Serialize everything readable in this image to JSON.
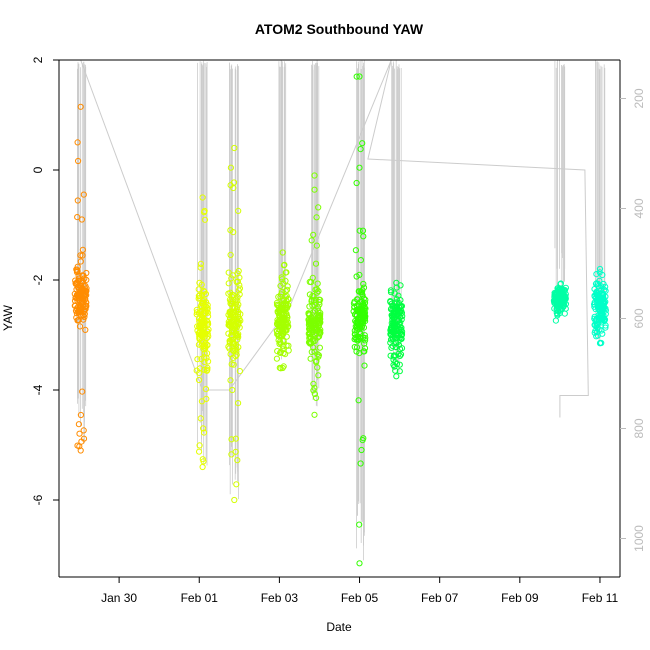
{
  "chart_data": {
    "type": "scatter",
    "title": "ATOM2 Southbound YAW",
    "xlabel": "Date",
    "ylabel": "YAW",
    "x_ticks": [
      "Jan 30",
      "Feb 01",
      "Feb 03",
      "Feb 05",
      "Feb 07",
      "Feb 09",
      "Feb 11"
    ],
    "y_ticks": [
      2,
      0,
      -2,
      -4,
      -6
    ],
    "y2_ticks": [
      200,
      400,
      600,
      800,
      1000
    ],
    "xlim": [
      "2015-01-28T12:00",
      "2015-02-11T12:00"
    ],
    "ylim": [
      -7.4,
      2.0
    ],
    "y2lim": [
      1070,
      130
    ],
    "grid": false,
    "legend": "none",
    "clusters": [
      {
        "x": "2015-01-29T01:00",
        "center": -2.3,
        "spread": 0.25,
        "low": -5.1,
        "high": 1.15,
        "color": "#ff8c00"
      },
      {
        "x": "2015-02-01T02:00",
        "center": -2.9,
        "spread": 0.35,
        "low": -5.4,
        "high": -0.5,
        "color": "#e5ff00"
      },
      {
        "x": "2015-02-01T21:00",
        "center": -2.8,
        "spread": 0.4,
        "low": -6.0,
        "high": 0.4,
        "color": "#d4ff00"
      },
      {
        "x": "2015-02-03T02:00",
        "center": -2.75,
        "spread": 0.3,
        "low": -3.6,
        "high": -1.5,
        "color": "#a5ff00"
      },
      {
        "x": "2015-02-03T21:00",
        "center": -2.8,
        "spread": 0.3,
        "low": -4.45,
        "high": -0.1,
        "color": "#7cff00"
      },
      {
        "x": "2015-02-05T00:00",
        "center": -2.7,
        "spread": 0.3,
        "low": -7.15,
        "high": 1.7,
        "color": "#33ff00"
      },
      {
        "x": "2015-02-05T22:00",
        "center": -2.8,
        "spread": 0.3,
        "low": -3.75,
        "high": -2.05,
        "color": "#00ff40"
      },
      {
        "x": "2015-02-10T00:00",
        "center": -2.35,
        "spread": 0.12,
        "low": -2.6,
        "high": -2.15,
        "color": "#00ffa5"
      },
      {
        "x": "2015-02-11T00:00",
        "center": -2.5,
        "spread": 0.2,
        "low": -3.15,
        "high": -1.8,
        "color": "#00ffc8"
      }
    ],
    "secondary_series": {
      "name": "",
      "color": "#cccccc",
      "points": [
        {
          "x": "2015-01-29T01:00",
          "y": 130
        },
        {
          "x": "2015-02-01T02:00",
          "y": 730
        },
        {
          "x": "2015-02-01T18:00",
          "y": 730
        },
        {
          "x": "2015-02-03T06:00",
          "y": 580
        },
        {
          "x": "2015-02-05T19:00",
          "y": 130
        },
        {
          "x": "2015-02-05T05:00",
          "y": 310
        },
        {
          "x": "2015-02-10T15:00",
          "y": 330
        },
        {
          "x": "2015-02-10T17:00",
          "y": 740
        },
        {
          "x": "2015-02-10T00:00",
          "y": 740
        },
        {
          "x": "2015-02-10T00:00",
          "y": 780
        }
      ]
    }
  }
}
